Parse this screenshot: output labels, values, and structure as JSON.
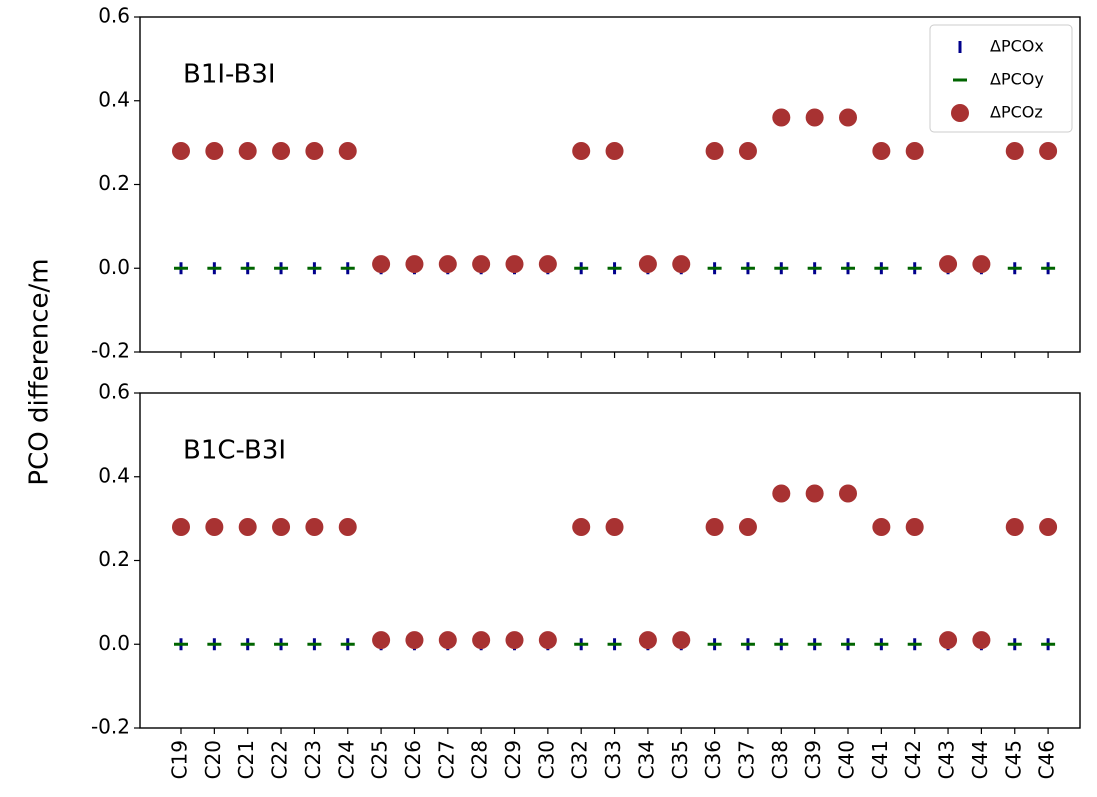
{
  "chart_data": [
    {
      "type": "scatter",
      "annotation": "B1I-B3I",
      "ylabel": "PCO difference/m",
      "ylim": [
        -0.2,
        0.6
      ],
      "yticks": [
        -0.2,
        {
          "value": 0,
          "label": "0.0"
        },
        0.2,
        0.4,
        0.6
      ],
      "legend": "upper right",
      "series": [
        {
          "name": "ΔPCOx",
          "color": "#00008b",
          "marker": "|",
          "values": [
            0,
            0,
            0,
            0,
            0,
            0,
            0,
            0,
            0,
            0,
            0,
            0,
            0,
            0,
            0,
            0,
            0,
            0,
            0,
            0,
            0,
            0,
            0,
            0,
            0,
            0,
            0
          ]
        },
        {
          "name": "ΔPCOy",
          "color": "#006400",
          "marker": "_",
          "values": [
            0,
            0,
            0,
            0,
            0,
            0,
            0,
            0,
            0,
            0,
            0,
            0,
            0,
            0,
            0,
            0,
            0,
            0,
            0,
            0,
            0,
            0,
            0,
            0,
            0,
            0,
            0
          ]
        },
        {
          "name": "ΔPCOz",
          "color": "#a83232",
          "marker": "o",
          "values": [
            0.28,
            0.28,
            0.28,
            0.28,
            0.28,
            0.28,
            0.01,
            0.01,
            0.01,
            0.01,
            0.01,
            0.01,
            0.28,
            0.28,
            0.01,
            0.01,
            0.28,
            0.28,
            0.36,
            0.36,
            0.36,
            0.28,
            0.28,
            0.01,
            0.01,
            0.28,
            0.28
          ]
        }
      ]
    },
    {
      "type": "scatter",
      "annotation": "B1C-B3I",
      "categories": [
        "C19",
        "C20",
        "C21",
        "C22",
        "C23",
        "C24",
        "C25",
        "C26",
        "C27",
        "C28",
        "C29",
        "C30",
        "C32",
        "C33",
        "C34",
        "C35",
        "C36",
        "C37",
        "C38",
        "C39",
        "C40",
        "C41",
        "C42",
        "C43",
        "C44",
        "C45",
        "C46"
      ],
      "ylim": [
        -0.2,
        0.6
      ],
      "yticks": [
        -0.2,
        {
          "value": 0,
          "label": "0.0"
        },
        0.2,
        0.4,
        0.6
      ],
      "series": [
        {
          "color": "#00008b",
          "marker": "|",
          "values": [
            0,
            0,
            0,
            0,
            0,
            0,
            0,
            0,
            0,
            0,
            0,
            0,
            0,
            0,
            0,
            0,
            0,
            0,
            0,
            0,
            0,
            0,
            0,
            0,
            0,
            0,
            0
          ]
        },
        {
          "color": "#006400",
          "marker": "_",
          "values": [
            0,
            0,
            0,
            0,
            0,
            0,
            0,
            0,
            0,
            0,
            0,
            0,
            0,
            0,
            0,
            0,
            0,
            0,
            0,
            0,
            0,
            0,
            0,
            0,
            0,
            0,
            0
          ]
        },
        {
          "color": "#a83232",
          "marker": "o",
          "values": [
            0.28,
            0.28,
            0.28,
            0.28,
            0.28,
            0.28,
            0.01,
            0.01,
            0.01,
            0.01,
            0.01,
            0.01,
            0.28,
            0.28,
            0.01,
            0.01,
            0.28,
            0.28,
            0.36,
            0.36,
            0.36,
            0.28,
            0.28,
            0.01,
            0.01,
            0.28,
            0.28
          ]
        }
      ]
    }
  ]
}
